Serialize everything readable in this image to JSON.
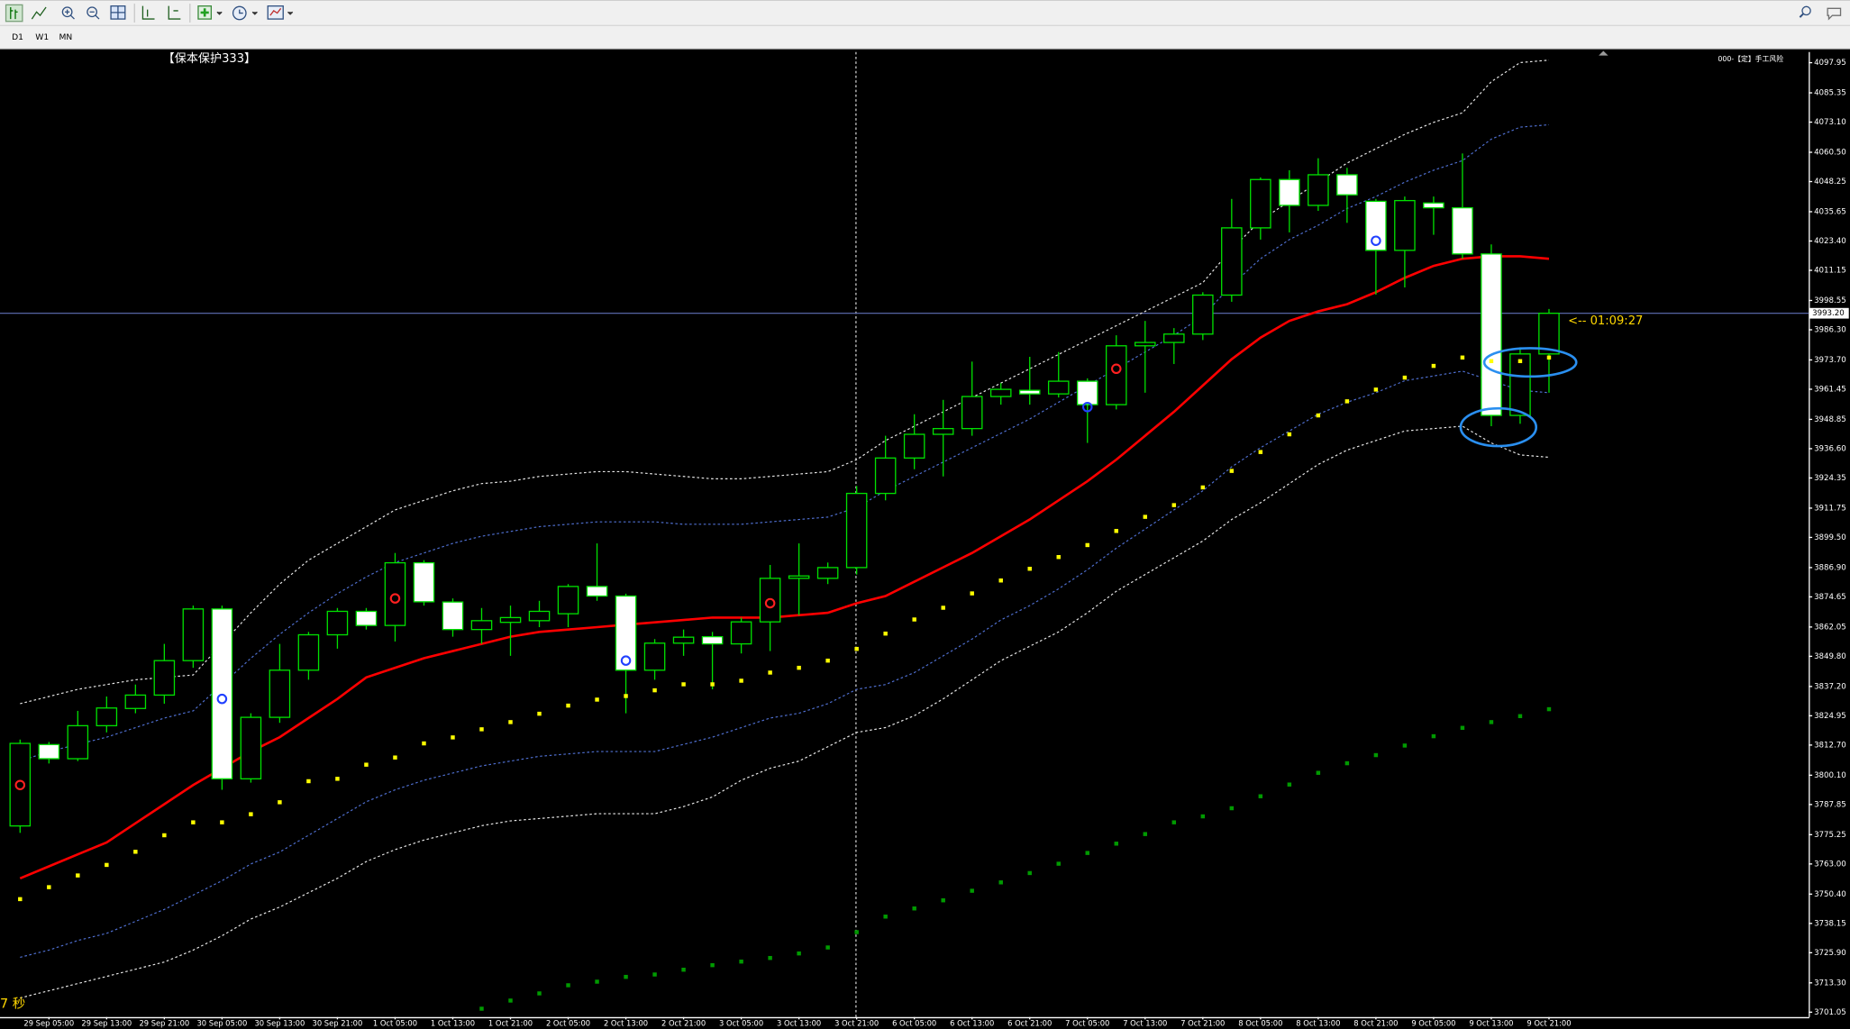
{
  "toolbar": {
    "timeframes": [
      "D1",
      "W1",
      "MN"
    ]
  },
  "chart_data": {
    "type": "candlestick",
    "label": "【保本保护333】",
    "corner_label": "000-【定】手工风险",
    "timer_text": "7 秒",
    "countdown": "<-- 01:09:27",
    "candle_outline": "#00e000",
    "up_fill": "#000000",
    "down_fill": "#ffffff",
    "grid": false,
    "categories": [
      null,
      "29 Sep 05:00",
      null,
      "29 Sep 13:00",
      null,
      "29 Sep 21:00",
      null,
      "30 Sep 05:00",
      null,
      "30 Sep 13:00",
      null,
      "30 Sep 21:00",
      null,
      "1 Oct 05:00",
      null,
      "1 Oct 13:00",
      null,
      "1 Oct 21:00",
      null,
      "2 Oct 05:00",
      null,
      "2 Oct 13:00",
      null,
      "2 Oct 21:00",
      null,
      "3 Oct 05:00",
      null,
      "3 Oct 13:00",
      null,
      "3 Oct 21:00",
      null,
      "6 Oct 05:00",
      null,
      "6 Oct 13:00",
      null,
      "6 Oct 21:00",
      null,
      "7 Oct 05:00",
      null,
      "7 Oct 13:00",
      null,
      "7 Oct 21:00",
      null,
      "8 Oct 05:00",
      null,
      "8 Oct 13:00",
      null,
      "8 Oct 21:00",
      null,
      "9 Oct 05:00",
      null,
      "9 Oct 13:00",
      null,
      "9 Oct 21:00"
    ],
    "open": [
      3778.9,
      3812.9,
      3807,
      3820.8,
      3828,
      3833.6,
      3848,
      3869.6,
      3798.6,
      3824.3,
      3844,
      3858.8,
      3868.6,
      3862.7,
      3888.9,
      3872.5,
      3861,
      3864,
      3864.7,
      3867.6,
      3879,
      3875,
      3844,
      3855.3,
      3858,
      3855,
      3864.2,
      3882.4,
      3882.4,
      3886.9,
      3917.9,
      3932.7,
      3942.6,
      3945,
      3958.4,
      3961,
      3959.5,
      3964.8,
      3955,
      3979.6,
      3981,
      3984.5,
      4000.8,
      4028.9,
      4049.1,
      4038.3,
      4051.1,
      4040,
      4019.5,
      4039.3,
      4037.3,
      4018,
      3950.5,
      3976.2
    ],
    "high": [
      3815,
      3814,
      3827,
      3833,
      3838,
      3855,
      3871,
      3871,
      3826,
      3855,
      3860,
      3870,
      3870,
      3893,
      3890,
      3874,
      3870,
      3871,
      3873,
      3880,
      3897,
      3876,
      3857,
      3861,
      3860,
      3866,
      3888,
      3897,
      3889,
      3921,
      3942,
      3951,
      3957,
      3973,
      3964,
      3975,
      3977,
      3966,
      3984,
      3990,
      3987,
      4002,
      4041,
      4050,
      4053,
      4058,
      4054,
      4041,
      4042,
      4042,
      4060,
      4022,
      3979,
      3995
    ],
    "low": [
      3776,
      3805,
      3806,
      3818,
      3826,
      3830,
      3845,
      3794,
      3797,
      3822,
      3840,
      3853,
      3861,
      3856,
      3871,
      3858,
      3855,
      3850,
      3862,
      3862,
      3873,
      3826,
      3840,
      3850,
      3836,
      3851,
      3852,
      3867,
      3880,
      3884,
      3915,
      3928,
      3925,
      3942,
      3955,
      3955,
      3958,
      3939,
      3953,
      3960,
      3972,
      3982,
      3998,
      4024,
      4027,
      4036,
      4031,
      4001,
      4004,
      4026,
      4016,
      3946,
      3947,
      3960
    ],
    "close": [
      3813.4,
      3807,
      3820.8,
      3828.2,
      3833.6,
      3848,
      3869.6,
      3798.6,
      3824.3,
      3844,
      3858.8,
      3868.6,
      3862.7,
      3888.9,
      3872.6,
      3861,
      3864.7,
      3866,
      3868.6,
      3879,
      3875,
      3844,
      3855.3,
      3857.8,
      3855,
      3864.2,
      3882.4,
      3883.4,
      3886.9,
      3917.9,
      3932.7,
      3942.6,
      3945,
      3958.4,
      3961.4,
      3959.5,
      3964.8,
      3955,
      3979.6,
      3981,
      3984.5,
      4000.8,
      4028.9,
      4049.1,
      4038.3,
      4051.1,
      4042.7,
      4019.5,
      4040.3,
      4037.3,
      4018,
      3950.5,
      3976.2,
      3993.2
    ],
    "series": [
      {
        "style": "dashed",
        "color": "#e8e8e8",
        "values": [
          3830,
          3833,
          3836,
          3838,
          3840,
          3841,
          3842,
          3855,
          3868,
          3880,
          3890,
          3897,
          3904,
          3911,
          3915,
          3919,
          3922,
          3923,
          3925,
          3926,
          3927,
          3927,
          3926,
          3925,
          3924,
          3924,
          3925,
          3926,
          3927,
          3932,
          3940,
          3946,
          3952,
          3958,
          3964,
          3970,
          3976,
          3982,
          3988,
          3994,
          4000,
          4006,
          4020,
          4032,
          4040,
          4048,
          4056,
          4062,
          4068,
          4073,
          4077,
          4090,
          4098,
          4099
        ]
      },
      {
        "style": "dashed",
        "color": "#e8e8e8",
        "values": [
          3707,
          3710,
          3713,
          3716,
          3719,
          3722,
          3727,
          3733,
          3740,
          3745,
          3751,
          3757,
          3764,
          3769,
          3773,
          3776,
          3779,
          3781,
          3782,
          3783,
          3784,
          3784,
          3784,
          3787,
          3791,
          3798,
          3803,
          3806,
          3812,
          3818,
          3820,
          3825,
          3832,
          3840,
          3848,
          3854,
          3860,
          3868,
          3877,
          3884,
          3891,
          3898,
          3907,
          3914,
          3922,
          3930,
          3936,
          3940,
          3944,
          3945,
          3946,
          3939,
          3934,
          3933
        ]
      },
      {
        "style": "dashed",
        "color": "#4f6fd0",
        "values": [
          3806,
          3810,
          3813,
          3816,
          3820,
          3824,
          3827,
          3838,
          3849,
          3859,
          3868,
          3876,
          3883,
          3889,
          3893,
          3897,
          3900,
          3902,
          3904,
          3905,
          3906,
          3906,
          3906,
          3905,
          3905,
          3905,
          3906,
          3907,
          3908,
          3912,
          3919,
          3925,
          3931,
          3937,
          3943,
          3949,
          3956,
          3963,
          3970,
          3977,
          3984,
          3992,
          4005,
          4016,
          4024,
          4030,
          4037,
          4042,
          4048,
          4053,
          4057,
          4066,
          4071,
          4072
        ]
      },
      {
        "style": "dashed",
        "color": "#4f6fd0",
        "values": [
          3724,
          3727,
          3731,
          3734,
          3739,
          3744,
          3750,
          3756,
          3763,
          3768,
          3775,
          3782,
          3789,
          3794,
          3798,
          3801,
          3804,
          3806,
          3808,
          3809,
          3810,
          3810,
          3810,
          3813,
          3816,
          3820,
          3824,
          3826,
          3830,
          3836,
          3838,
          3843,
          3850,
          3857,
          3865,
          3871,
          3878,
          3886,
          3895,
          3903,
          3911,
          3919,
          3929,
          3937,
          3944,
          3951,
          3956,
          3960,
          3965,
          3967,
          3969,
          3965,
          3961,
          3960
        ]
      },
      {
        "style": "line",
        "color": "#ff0000",
        "values": [
          3757,
          3762,
          3767,
          3772,
          3780,
          3788,
          3796,
          3803,
          3810,
          3816,
          3824,
          3832,
          3841,
          3845,
          3849,
          3852,
          3855,
          3858,
          3860,
          3861,
          3862,
          3863,
          3864,
          3865,
          3866,
          3866,
          3866,
          3867,
          3868,
          3872,
          3875,
          3881,
          3887,
          3893,
          3900,
          3907,
          3915,
          3923,
          3932,
          3942,
          3952,
          3963,
          3974,
          3983,
          3990,
          3994,
          3997,
          4002,
          4008,
          4013,
          4016,
          4017,
          4017,
          4016
        ]
      },
      {
        "style": "dots",
        "color": "#ffff00",
        "values": [
          3748.3,
          3753.3,
          3758.2,
          3762.6,
          3768.1,
          3775.0,
          3780.4,
          3780.4,
          3783.8,
          3788.8,
          3797.6,
          3798.6,
          3804.5,
          3807.5,
          3813.4,
          3815.9,
          3819.3,
          3822.3,
          3825.8,
          3829.2,
          3831.7,
          3833.2,
          3835.6,
          3838.1,
          3838.1,
          3839.6,
          3843.0,
          3845.0,
          3848.0,
          3852.9,
          3859.3,
          3865.2,
          3870.1,
          3876.1,
          3881.5,
          3886.4,
          3891.3,
          3896.3,
          3902.2,
          3908.1,
          3913.0,
          3920.4,
          3927.3,
          3935.2,
          3942.6,
          3950.5,
          3956.4,
          3961.3,
          3966.3,
          3971.2,
          3974.7,
          3973.2,
          3973.2,
          3974.7
        ]
      },
      {
        "style": "dots",
        "color": "#009a00",
        "values": [
          null,
          null,
          null,
          null,
          null,
          null,
          null,
          null,
          null,
          null,
          null,
          null,
          null,
          null,
          null,
          null,
          3702.5,
          3705.9,
          3708.9,
          3712.3,
          3713.8,
          3715.8,
          3716.8,
          3718.8,
          3720.7,
          3722.2,
          3723.7,
          3725.6,
          3728.1,
          3734.5,
          3741.0,
          3744.4,
          3747.8,
          3751.8,
          3755.3,
          3759.2,
          3763.1,
          3767.6,
          3771.5,
          3775.5,
          3780.4,
          3782.9,
          3786.3,
          3791.3,
          3796.2,
          3801.1,
          3805.1,
          3808.5,
          3812.5,
          3816.4,
          3819.9,
          3822.3,
          3824.8,
          3827.7
        ]
      },
      {
        "style": "circle",
        "color": "#ff2020",
        "values": [
          3796,
          null,
          null,
          null,
          null,
          null,
          null,
          null,
          null,
          null,
          null,
          null,
          null,
          3874,
          null,
          null,
          null,
          null,
          null,
          null,
          null,
          null,
          null,
          null,
          null,
          null,
          3872,
          null,
          null,
          null,
          null,
          null,
          null,
          null,
          null,
          null,
          null,
          null,
          3970,
          null,
          null,
          null,
          null,
          null,
          null,
          null,
          null,
          null,
          null,
          null,
          null,
          null,
          null,
          null
        ]
      },
      {
        "style": "circle",
        "color": "#2040ff",
        "values": [
          null,
          null,
          null,
          null,
          null,
          null,
          null,
          3832,
          null,
          null,
          null,
          null,
          null,
          null,
          null,
          null,
          null,
          null,
          null,
          null,
          null,
          3848,
          null,
          null,
          null,
          null,
          null,
          null,
          null,
          null,
          null,
          null,
          null,
          null,
          null,
          null,
          null,
          3954,
          null,
          null,
          null,
          null,
          null,
          null,
          null,
          null,
          null,
          4023.5,
          null,
          null,
          null,
          null,
          null,
          null
        ]
      }
    ],
    "ylim": [
      3699,
      4102.4
    ],
    "yticks": [
      4097.95,
      4085.35,
      {
        "value": 4073.1,
        "label": "4073.10"
      },
      {
        "value": 4060.5,
        "label": "4060.50"
      },
      4048.25,
      4035.65,
      {
        "value": 4023.4,
        "label": "4023.40"
      },
      4011.15,
      3998.55,
      {
        "value": 3986.3,
        "label": "3986.30"
      },
      {
        "value": 3973.7,
        "label": "3973.70"
      },
      3961.45,
      3948.85,
      {
        "value": 3936.6,
        "label": "3936.60"
      },
      3924.35,
      3911.75,
      {
        "value": 3899.5,
        "label": "3899.50"
      },
      {
        "value": 3886.9,
        "label": "3886.90"
      },
      3874.65,
      3862.05,
      {
        "value": 3849.8,
        "label": "3849.80"
      },
      {
        "value": 3837.2,
        "label": "3837.20"
      },
      3824.95,
      {
        "value": 3812.7,
        "label": "3812.70"
      },
      {
        "value": 3800.1,
        "label": "3800.10"
      },
      3787.85,
      3775.25,
      {
        "value": 3763,
        "label": "3763.00"
      },
      {
        "value": 3750.4,
        "label": "3750.40"
      },
      3738.15,
      {
        "value": 3725.9,
        "label": "3725.90"
      },
      {
        "value": 3713.3,
        "label": "3713.30"
      },
      3701.05
    ],
    "current_price": {
      "value": 3993.2,
      "label": "3993.20"
    }
  }
}
